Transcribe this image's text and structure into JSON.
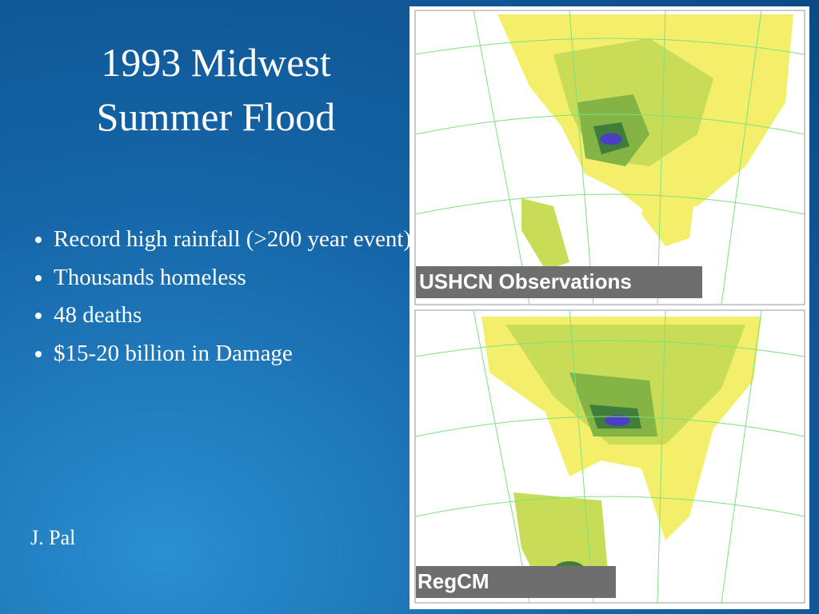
{
  "slide": {
    "title": "1993 Midwest Summer Flood",
    "bullets": [
      "Record high rainfall (>200 year event)",
      "Thousands homeless",
      "48 deaths",
      "$15-20 billion in Damage"
    ],
    "author": "J. Pal"
  },
  "figures": [
    {
      "label": "USHCN Observations"
    },
    {
      "label": "RegCM"
    }
  ]
}
